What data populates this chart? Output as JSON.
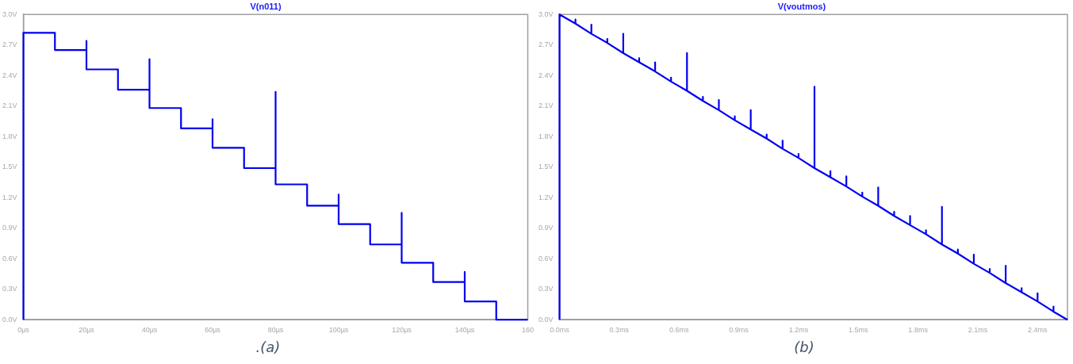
{
  "chart_data": [
    {
      "type": "line",
      "title": "V(n011)",
      "annotations": [
        ".(a)"
      ],
      "marker": "none",
      "xlim": [
        0,
        160
      ],
      "ylim": [
        0,
        3.0
      ],
      "xticks": [
        {
          "value": 0,
          "label": "0µs"
        },
        {
          "value": 20,
          "label": "20µs"
        },
        {
          "value": 40,
          "label": "40µs"
        },
        {
          "value": 60,
          "label": "60µs"
        },
        {
          "value": 80,
          "label": "80µs"
        },
        {
          "value": 100,
          "label": "100µs"
        },
        {
          "value": 120,
          "label": "120µs"
        },
        {
          "value": 140,
          "label": "140µs"
        },
        {
          "value": 160,
          "label": "160"
        }
      ],
      "yticks": [
        {
          "value": 0,
          "label": "0.0V"
        },
        {
          "value": 0.3,
          "label": "0.3V"
        },
        {
          "value": 0.6,
          "label": "0.6V"
        },
        {
          "value": 0.9,
          "label": "0.9V"
        },
        {
          "value": 1.2,
          "label": "1.2V"
        },
        {
          "value": 1.5,
          "label": "1.5V"
        },
        {
          "value": 1.8,
          "label": "1.8V"
        },
        {
          "value": 2.1,
          "label": "2.1V"
        },
        {
          "value": 2.4,
          "label": "2.4V"
        },
        {
          "value": 2.7,
          "label": "2.7V"
        },
        {
          "value": 3.0,
          "label": "3.0V"
        }
      ],
      "series": [
        {
          "color": "#0000ee",
          "x": [
            0,
            0,
            10,
            10,
            20,
            20,
            20,
            30,
            30,
            40,
            40,
            40,
            50,
            50,
            60,
            60,
            60,
            70,
            70,
            80,
            80,
            80,
            90,
            90,
            100,
            100,
            100,
            110,
            110,
            120,
            120,
            120,
            130,
            130,
            140,
            140,
            140,
            150,
            150,
            160
          ],
          "values": [
            0,
            2.82,
            2.82,
            2.65,
            2.65,
            2.74,
            2.46,
            2.46,
            2.26,
            2.26,
            2.56,
            2.08,
            2.08,
            1.88,
            1.88,
            1.97,
            1.69,
            1.69,
            1.49,
            1.49,
            2.24,
            1.33,
            1.33,
            1.12,
            1.12,
            1.23,
            0.94,
            0.94,
            0.74,
            0.74,
            1.05,
            0.56,
            0.56,
            0.37,
            0.37,
            0.47,
            0.18,
            0.18,
            0,
            0
          ]
        }
      ]
    },
    {
      "type": "line",
      "title": "V(voutmos)",
      "annotations": [
        "(b)"
      ],
      "marker": "none",
      "xlim": [
        0,
        2.55
      ],
      "ylim": [
        0,
        3.0
      ],
      "xticks": [
        {
          "value": 0,
          "label": "0.0ms"
        },
        {
          "value": 0.3,
          "label": "0.3ms"
        },
        {
          "value": 0.6,
          "label": "0.6ms"
        },
        {
          "value": 0.9,
          "label": "0.9ms"
        },
        {
          "value": 1.2,
          "label": "1.2ms"
        },
        {
          "value": 1.5,
          "label": "1.5ms"
        },
        {
          "value": 1.8,
          "label": "1.8ms"
        },
        {
          "value": 2.1,
          "label": "2.1ms"
        },
        {
          "value": 2.4,
          "label": "2.4ms"
        }
      ],
      "yticks": [
        {
          "value": 0,
          "label": "0.0V"
        },
        {
          "value": 0.3,
          "label": "0.3V"
        },
        {
          "value": 0.6,
          "label": "0.6V"
        },
        {
          "value": 0.9,
          "label": "0.9V"
        },
        {
          "value": 1.2,
          "label": "1.2V"
        },
        {
          "value": 1.5,
          "label": "1.5V"
        },
        {
          "value": 1.8,
          "label": "1.8V"
        },
        {
          "value": 2.1,
          "label": "2.1V"
        },
        {
          "value": 2.4,
          "label": "2.4V"
        },
        {
          "value": 2.7,
          "label": "2.7V"
        },
        {
          "value": 3.0,
          "label": "3.0V"
        }
      ],
      "series": [
        {
          "color": "#0000ee",
          "x": [
            0,
            0,
            0.08,
            0.08,
            0.08,
            0.16,
            0.16,
            0.16,
            0.24,
            0.24,
            0.24,
            0.32,
            0.32,
            0.32,
            0.4,
            0.4,
            0.4,
            0.48,
            0.48,
            0.48,
            0.56,
            0.56,
            0.56,
            0.64,
            0.64,
            0.64,
            0.72,
            0.72,
            0.72,
            0.8,
            0.8,
            0.8,
            0.88,
            0.88,
            0.88,
            0.96,
            0.96,
            0.96,
            1.04,
            1.04,
            1.04,
            1.12,
            1.12,
            1.12,
            1.2,
            1.2,
            1.2,
            1.28,
            1.28,
            1.28,
            1.36,
            1.36,
            1.36,
            1.44,
            1.44,
            1.44,
            1.52,
            1.52,
            1.52,
            1.6,
            1.6,
            1.6,
            1.68,
            1.68,
            1.68,
            1.76,
            1.76,
            1.76,
            1.84,
            1.84,
            1.84,
            1.92,
            1.92,
            1.92,
            2.0,
            2.0,
            2.0,
            2.08,
            2.08,
            2.08,
            2.16,
            2.16,
            2.16,
            2.24,
            2.24,
            2.24,
            2.32,
            2.32,
            2.32,
            2.4,
            2.4,
            2.4,
            2.48,
            2.48,
            2.48,
            2.55
          ],
          "values": [
            0,
            3.0,
            2.91,
            2.95,
            2.91,
            2.81,
            2.9,
            2.81,
            2.72,
            2.76,
            2.72,
            2.62,
            2.81,
            2.62,
            2.53,
            2.57,
            2.53,
            2.44,
            2.53,
            2.44,
            2.34,
            2.38,
            2.34,
            2.25,
            2.62,
            2.25,
            2.15,
            2.19,
            2.15,
            2.06,
            2.16,
            2.06,
            1.96,
            2.0,
            1.96,
            1.87,
            2.06,
            1.87,
            1.78,
            1.82,
            1.78,
            1.68,
            1.76,
            1.68,
            1.59,
            1.63,
            1.59,
            1.49,
            2.29,
            1.49,
            1.4,
            1.46,
            1.4,
            1.31,
            1.41,
            1.31,
            1.21,
            1.25,
            1.21,
            1.12,
            1.3,
            1.12,
            1.02,
            1.06,
            1.02,
            0.93,
            1.02,
            0.93,
            0.84,
            0.88,
            0.84,
            0.74,
            1.11,
            0.74,
            0.65,
            0.69,
            0.65,
            0.55,
            0.64,
            0.55,
            0.46,
            0.5,
            0.46,
            0.36,
            0.53,
            0.36,
            0.27,
            0.31,
            0.27,
            0.18,
            0.26,
            0.18,
            0.08,
            0.13,
            0.08,
            0
          ]
        }
      ]
    }
  ]
}
